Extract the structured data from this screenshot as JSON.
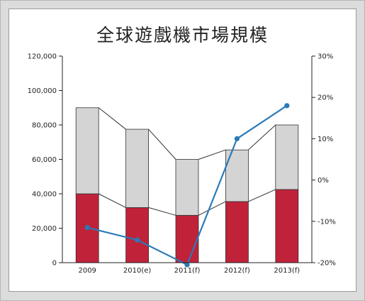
{
  "chart_data": {
    "type": "bar",
    "title": "全球遊戲機市場規模",
    "categories": [
      "2009",
      "2010(e)",
      "2011(f)",
      "2012(f)",
      "2013(f)"
    ],
    "series": [
      {
        "kind": "stacked-bar-bottom",
        "values": [
          40000,
          32000,
          27500,
          35500,
          42500
        ],
        "color": "#c0223a"
      },
      {
        "kind": "stacked-bar-top",
        "values": [
          50000,
          45500,
          32500,
          30000,
          37500
        ],
        "color": "#d4d4d4"
      },
      {
        "kind": "line-right-axis",
        "values": [
          -11.5,
          -14.5,
          -20.5,
          10,
          18
        ],
        "color": "#2a7ab8"
      }
    ],
    "y_left": {
      "ylim": [
        0,
        120000
      ],
      "tick_labels": [
        "0",
        "20,000",
        "40,000",
        "60,000",
        "80,000",
        "100,000",
        "120,000"
      ]
    },
    "y_right": {
      "ylim": [
        -20,
        30
      ],
      "tick_labels": [
        "-20%",
        "-10%",
        "0%",
        "10%",
        "20%",
        "30%"
      ]
    },
    "grid": false,
    "legend": "none"
  }
}
